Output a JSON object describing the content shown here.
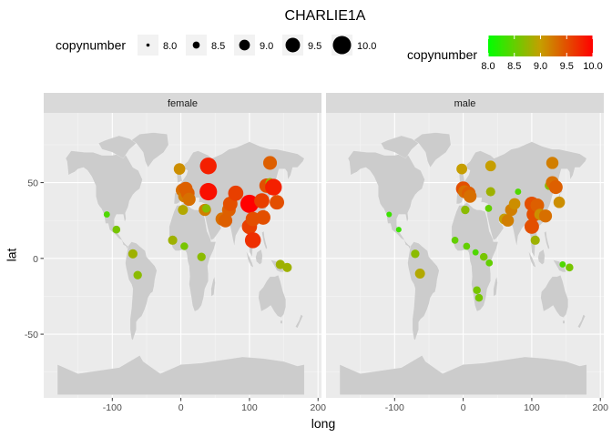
{
  "chart_data": {
    "type": "scatter",
    "title": "CHARLIE1A",
    "xlabel": "long",
    "ylabel": "lat",
    "xlim": [
      -200,
      205
    ],
    "ylim": [
      -92,
      96
    ],
    "x_ticks": [
      -100,
      0,
      100,
      200
    ],
    "x_tick_labels": [
      "-100",
      "0",
      "100",
      "200"
    ],
    "y_ticks": [
      -50,
      0,
      50
    ],
    "y_tick_labels": [
      "-50",
      "0",
      "50"
    ],
    "grid": true,
    "size_legend": {
      "title": "copynumber",
      "entries": [
        {
          "value": 8.0,
          "label": "8.0"
        },
        {
          "value": 8.5,
          "label": "8.5"
        },
        {
          "value": 9.0,
          "label": "9.0"
        },
        {
          "value": 9.5,
          "label": "9.5"
        },
        {
          "value": 10.0,
          "label": "10.0"
        }
      ]
    },
    "color_legend": {
      "title": "copynumber",
      "low_color": "#00ff00",
      "high_color": "#ff0000",
      "ticks": [
        {
          "value": 8.0,
          "label": "8.0"
        },
        {
          "value": 8.5,
          "label": "8.5"
        },
        {
          "value": 9.0,
          "label": "9.0"
        },
        {
          "value": 9.5,
          "label": "9.5"
        },
        {
          "value": 10.0,
          "label": "10.0"
        }
      ]
    },
    "colors": {
      "panel_background": "#ebebeb",
      "strip_background": "#d9d9d9",
      "land": "#cccccc",
      "grid_major": "#ffffff"
    },
    "facets": [
      {
        "label": "female",
        "points": [
          {
            "long": -108,
            "lat": 29,
            "copynumber": 8.4
          },
          {
            "long": -94,
            "lat": 19,
            "copynumber": 8.6
          },
          {
            "long": -70,
            "lat": 3,
            "copynumber": 8.8
          },
          {
            "long": -63,
            "lat": -11,
            "copynumber": 8.7
          },
          {
            "long": -2,
            "lat": 59,
            "copynumber": 9.1
          },
          {
            "long": 2,
            "lat": 45,
            "copynumber": 9.3
          },
          {
            "long": 5,
            "lat": 41,
            "copynumber": 9.2
          },
          {
            "long": 7,
            "lat": 46,
            "copynumber": 9.4
          },
          {
            "long": 10,
            "lat": 43,
            "copynumber": 9.4
          },
          {
            "long": 12,
            "lat": 39,
            "copynumber": 9.3
          },
          {
            "long": 3,
            "lat": 32,
            "copynumber": 8.9
          },
          {
            "long": -12,
            "lat": 12,
            "copynumber": 8.8
          },
          {
            "long": 5,
            "lat": 8,
            "copynumber": 8.6
          },
          {
            "long": 30,
            "lat": 1,
            "copynumber": 8.7
          },
          {
            "long": 35,
            "lat": 32,
            "copynumber": 9.2
          },
          {
            "long": 37,
            "lat": 33,
            "copynumber": 8.7
          },
          {
            "long": 40,
            "lat": 61,
            "copynumber": 9.8
          },
          {
            "long": 40,
            "lat": 44,
            "copynumber": 9.9
          },
          {
            "long": 60,
            "lat": 26,
            "copynumber": 9.3
          },
          {
            "long": 65,
            "lat": 25,
            "copynumber": 9.4
          },
          {
            "long": 70,
            "lat": 32,
            "copynumber": 9.4
          },
          {
            "long": 72,
            "lat": 36,
            "copynumber": 9.5
          },
          {
            "long": 80,
            "lat": 43,
            "copynumber": 9.6
          },
          {
            "long": 100,
            "lat": 36,
            "copynumber": 10.0
          },
          {
            "long": 100,
            "lat": 21,
            "copynumber": 9.6
          },
          {
            "long": 105,
            "lat": 26,
            "copynumber": 9.5
          },
          {
            "long": 105,
            "lat": 12,
            "copynumber": 9.7
          },
          {
            "long": 118,
            "lat": 38,
            "copynumber": 9.6
          },
          {
            "long": 120,
            "lat": 27,
            "copynumber": 9.5
          },
          {
            "long": 125,
            "lat": 48,
            "copynumber": 9.5
          },
          {
            "long": 130,
            "lat": 50,
            "copynumber": 8.8
          },
          {
            "long": 130,
            "lat": 63,
            "copynumber": 9.4
          },
          {
            "long": 135,
            "lat": 47,
            "copynumber": 9.8
          },
          {
            "long": 140,
            "lat": 37,
            "copynumber": 9.5
          },
          {
            "long": 145,
            "lat": -4,
            "copynumber": 8.8
          },
          {
            "long": 155,
            "lat": -6,
            "copynumber": 8.8
          }
        ]
      },
      {
        "label": "male",
        "points": [
          {
            "long": -108,
            "lat": 29,
            "copynumber": 8.3
          },
          {
            "long": -94,
            "lat": 19,
            "copynumber": 8.3
          },
          {
            "long": -70,
            "lat": 3,
            "copynumber": 8.7
          },
          {
            "long": -63,
            "lat": -10,
            "copynumber": 8.9
          },
          {
            "long": -2,
            "lat": 59,
            "copynumber": 9.0
          },
          {
            "long": 0,
            "lat": 46,
            "copynumber": 9.5
          },
          {
            "long": 2,
            "lat": 44,
            "copynumber": 9.3
          },
          {
            "long": 8,
            "lat": 43,
            "copynumber": 9.4
          },
          {
            "long": 10,
            "lat": 41,
            "copynumber": 9.3
          },
          {
            "long": 3,
            "lat": 32,
            "copynumber": 8.7
          },
          {
            "long": -12,
            "lat": 12,
            "copynumber": 8.5
          },
          {
            "long": 5,
            "lat": 8,
            "copynumber": 8.5
          },
          {
            "long": 18,
            "lat": 4,
            "copynumber": 8.4
          },
          {
            "long": 30,
            "lat": 1,
            "copynumber": 8.6
          },
          {
            "long": 38,
            "lat": -3,
            "copynumber": 8.5
          },
          {
            "long": 20,
            "lat": -21,
            "copynumber": 8.6
          },
          {
            "long": 23,
            "lat": -26,
            "copynumber": 8.6
          },
          {
            "long": 37,
            "lat": 33,
            "copynumber": 8.5
          },
          {
            "long": 40,
            "lat": 61,
            "copynumber": 9.0
          },
          {
            "long": 40,
            "lat": 44,
            "copynumber": 8.8
          },
          {
            "long": 60,
            "lat": 26,
            "copynumber": 9.0
          },
          {
            "long": 65,
            "lat": 25,
            "copynumber": 9.2
          },
          {
            "long": 70,
            "lat": 32,
            "copynumber": 9.2
          },
          {
            "long": 75,
            "lat": 36,
            "copynumber": 9.1
          },
          {
            "long": 80,
            "lat": 44,
            "copynumber": 8.4
          },
          {
            "long": 100,
            "lat": 36,
            "copynumber": 9.5
          },
          {
            "long": 100,
            "lat": 21,
            "copynumber": 9.5
          },
          {
            "long": 103,
            "lat": 29,
            "copynumber": 9.5
          },
          {
            "long": 108,
            "lat": 35,
            "copynumber": 9.4
          },
          {
            "long": 112,
            "lat": 29,
            "copynumber": 9.1
          },
          {
            "long": 120,
            "lat": 28,
            "copynumber": 9.3
          },
          {
            "long": 105,
            "lat": 12,
            "copynumber": 8.8
          },
          {
            "long": 125,
            "lat": 48,
            "copynumber": 8.7
          },
          {
            "long": 130,
            "lat": 50,
            "copynumber": 9.3
          },
          {
            "long": 130,
            "lat": 63,
            "copynumber": 9.2
          },
          {
            "long": 135,
            "lat": 47,
            "copynumber": 9.4
          },
          {
            "long": 140,
            "lat": 37,
            "copynumber": 9.1
          },
          {
            "long": 145,
            "lat": -4,
            "copynumber": 8.4
          },
          {
            "long": 155,
            "lat": -6,
            "copynumber": 8.6
          }
        ]
      }
    ]
  }
}
